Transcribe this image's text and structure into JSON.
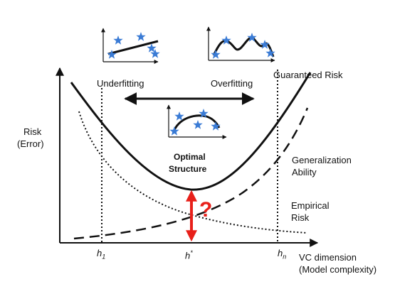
{
  "labels": {
    "risk_line1": "Risk",
    "risk_line2": "(Error)",
    "underfitting": "Underfitting",
    "overfitting": "Overfitting",
    "guaranteed_risk": "Guaranteed Risk",
    "generalization_line1": "Generalization",
    "generalization_line2": "Ability",
    "empirical_line1": "Empirical",
    "empirical_line2": "Risk",
    "optimal_line1": "Optimal",
    "optimal_line2": "Structure",
    "h1_base": "h",
    "h1_sub": "1",
    "hstar_base": "h",
    "hstar_sup": "*",
    "hn_base": "h",
    "hn_sub": "n",
    "xaxis_line1": "VC dimension",
    "xaxis_line2": "(Model complexity)",
    "question_mark": "?"
  },
  "colors": {
    "ink": "#111111",
    "star": "#3a7bd5",
    "question": "#e8201a"
  },
  "icons": {
    "star": "star-marker",
    "arrow": "double-arrow"
  }
}
